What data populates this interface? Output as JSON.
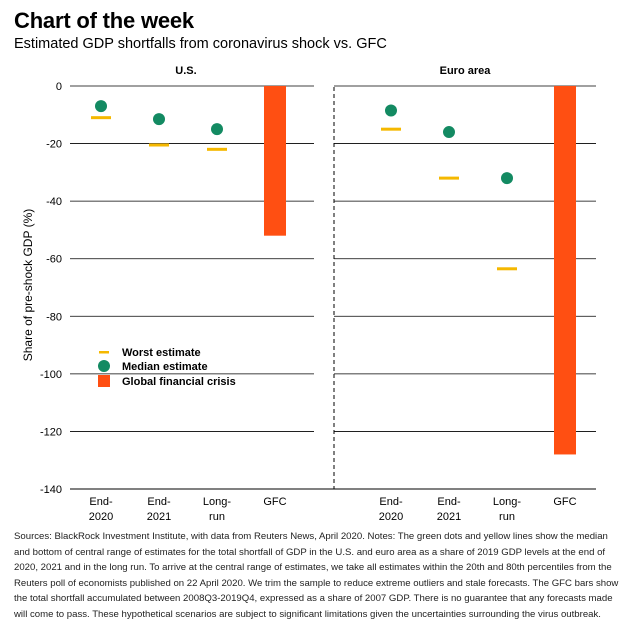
{
  "header": {
    "title": "Chart of the week",
    "subtitle": "Estimated GDP shortfalls from coronavirus shock vs. GFC"
  },
  "source": "Sources: BlackRock Investment Institute, with data from Reuters News, April 2020. Notes: The green dots and yellow lines show the median and bottom of central range of estimates for the total shortfall of GDP in the U.S. and euro area as a share of 2019 GDP levels at the end of 2020, 2021 and in the long run. To arrive at the central range of estimates, we take all estimates within the 20th and 80th percentiles from the Reuters poll of economists published on 22 April 2020. We trim the sample to reduce extreme outliers and stale forecasts. The GFC bars show the total shortfall accumulated between 2008Q3-2019Q4, expressed as a share of 2007 GDP. There is no guarantee that any forecasts made will come to pass. These hypothetical scenarios are subject to significant limitations given the uncertainties surrounding the virus outbreak.",
  "chart_data": {
    "type": "bar",
    "ylabel": "Share of pre-shock GDP (%)",
    "ylim": [
      -140,
      0
    ],
    "yticks": [
      "0",
      "-20",
      "-40",
      "-60",
      "-80",
      "-100",
      "-120",
      "-140"
    ],
    "ytick_values": [
      0,
      -20,
      -40,
      -60,
      -80,
      -100,
      -120,
      -140
    ],
    "grid": true,
    "legend": {
      "placement": "left-center",
      "entries": [
        "Worst estimate",
        "Median estimate",
        "Global financial crisis"
      ]
    },
    "colors": {
      "median": "#138a62",
      "worst": "#f5b800",
      "gfc": "#ff4f12"
    },
    "panels": [
      {
        "title": "U.S.",
        "categories": [
          "End-\n2020",
          "End-\n2021",
          "Long-\nrun",
          "GFC"
        ],
        "median": [
          -7,
          -11.5,
          -15,
          null
        ],
        "worst": [
          -11,
          -20.5,
          -22,
          null
        ],
        "gfc": -52
      },
      {
        "title": "Euro area",
        "categories": [
          "End-\n2020",
          "End-\n2021",
          "Long-\nrun",
          "GFC"
        ],
        "median": [
          -8.5,
          -16,
          -32,
          null
        ],
        "worst": [
          -15,
          -32,
          -63.5,
          null
        ],
        "gfc": -128
      }
    ]
  }
}
